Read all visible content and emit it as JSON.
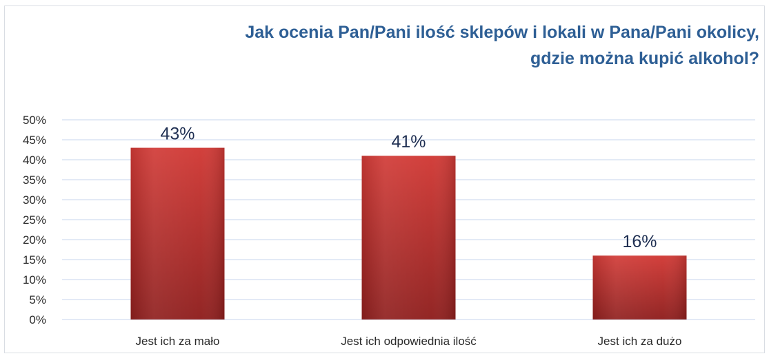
{
  "chart_data": {
    "type": "bar",
    "title_lines": [
      "Jak ocenia Pan/Pani ilość sklepów i lokali w Pana/Pani okolicy,",
      "gdzie można kupić alkohol?"
    ],
    "categories": [
      "Jest ich za mało",
      "Jest ich odpowiednia ilość",
      "Jest ich za dużo"
    ],
    "values": [
      43,
      41,
      16
    ],
    "data_labels": [
      "43%",
      "41%",
      "16%"
    ],
    "ylim": [
      0,
      50
    ],
    "y_ticks": [
      "0%",
      "5%",
      "10%",
      "15%",
      "20%",
      "25%",
      "30%",
      "35%",
      "40%",
      "45%",
      "50%"
    ],
    "grid": true,
    "legend": "none",
    "xlabel": "",
    "ylabel": "",
    "colors": {
      "bar_top": "#d13a36",
      "bar_bottom": "#8f1f1e",
      "title": "#2e5f95",
      "grid": "#c7d6ee",
      "data_label": "#1f2f52"
    }
  }
}
